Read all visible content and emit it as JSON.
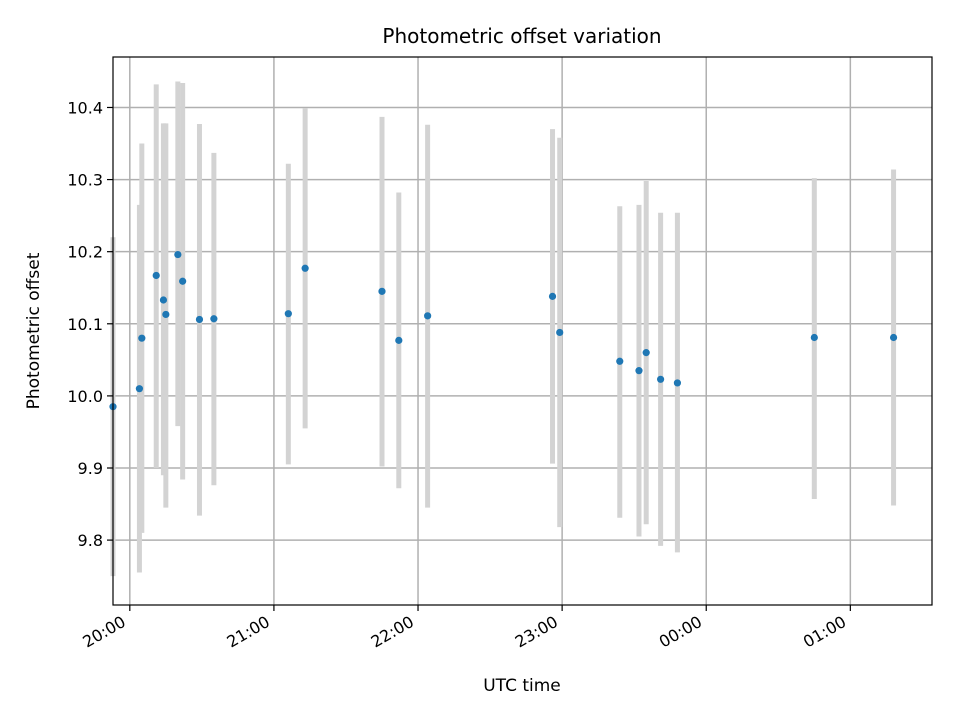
{
  "chart_data": {
    "type": "scatter",
    "title": "Photometric offset variation",
    "xlabel": "UTC time",
    "ylabel": "Photometric offset",
    "grid": true,
    "xlim": [
      "19:53",
      "01:34"
    ],
    "ylim": [
      9.71,
      10.47
    ],
    "x_ticks": [
      "20:00",
      "21:00",
      "22:00",
      "23:00",
      "00:00",
      "01:00"
    ],
    "y_ticks": [
      "9.8",
      "9.9",
      "10.0",
      "10.1",
      "10.2",
      "10.3",
      "10.4"
    ],
    "marker_color": "#1f77b4",
    "errorbar_color": "#d3d3d3",
    "points": [
      {
        "time": "19:53",
        "y": 9.985,
        "ylow": 9.75,
        "yhigh": 10.22
      },
      {
        "time": "20:04",
        "y": 10.01,
        "ylow": 9.755,
        "yhigh": 10.265
      },
      {
        "time": "20:05",
        "y": 10.08,
        "ylow": 9.81,
        "yhigh": 10.35
      },
      {
        "time": "20:11",
        "y": 10.167,
        "ylow": 9.9,
        "yhigh": 10.432
      },
      {
        "time": "20:14",
        "y": 10.133,
        "ylow": 9.89,
        "yhigh": 10.378
      },
      {
        "time": "20:15",
        "y": 10.113,
        "ylow": 9.845,
        "yhigh": 10.378
      },
      {
        "time": "20:20",
        "y": 10.196,
        "ylow": 9.958,
        "yhigh": 10.436
      },
      {
        "time": "20:22",
        "y": 10.159,
        "ylow": 9.884,
        "yhigh": 10.434
      },
      {
        "time": "20:29",
        "y": 10.106,
        "ylow": 9.834,
        "yhigh": 10.377
      },
      {
        "time": "20:35",
        "y": 10.107,
        "ylow": 9.876,
        "yhigh": 10.337
      },
      {
        "time": "21:06",
        "y": 10.114,
        "ylow": 9.905,
        "yhigh": 10.322
      },
      {
        "time": "21:13",
        "y": 10.177,
        "ylow": 9.955,
        "yhigh": 10.399
      },
      {
        "time": "21:45",
        "y": 10.145,
        "ylow": 9.902,
        "yhigh": 10.387
      },
      {
        "time": "21:52",
        "y": 10.077,
        "ylow": 9.872,
        "yhigh": 10.282
      },
      {
        "time": "22:04",
        "y": 10.111,
        "ylow": 9.845,
        "yhigh": 10.376
      },
      {
        "time": "22:56",
        "y": 10.138,
        "ylow": 9.906,
        "yhigh": 10.37
      },
      {
        "time": "22:59",
        "y": 10.088,
        "ylow": 9.818,
        "yhigh": 10.358
      },
      {
        "time": "23:24",
        "y": 10.048,
        "ylow": 9.831,
        "yhigh": 10.263
      },
      {
        "time": "23:32",
        "y": 10.035,
        "ylow": 9.805,
        "yhigh": 10.265
      },
      {
        "time": "23:35",
        "y": 10.06,
        "ylow": 9.822,
        "yhigh": 10.298
      },
      {
        "time": "23:41",
        "y": 10.023,
        "ylow": 9.792,
        "yhigh": 10.254
      },
      {
        "time": "23:48",
        "y": 10.018,
        "ylow": 9.783,
        "yhigh": 10.254
      },
      {
        "time": "00:45",
        "y": 10.081,
        "ylow": 9.857,
        "yhigh": 10.302
      },
      {
        "time": "01:18",
        "y": 10.081,
        "ylow": 9.848,
        "yhigh": 10.314
      }
    ]
  }
}
